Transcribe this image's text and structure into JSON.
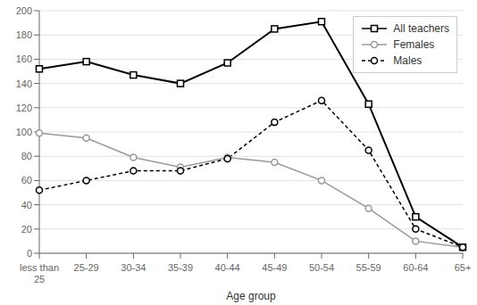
{
  "chart_data": {
    "type": "line",
    "categories": [
      "less than\n25",
      "25-29",
      "30-34",
      "35-39",
      "40-44",
      "45-49",
      "50-54",
      "55-59",
      "60-64",
      "65+"
    ],
    "series": [
      {
        "name": "All teachers",
        "color": "#000000",
        "marker": "square",
        "line_style": "solid",
        "values": [
          152,
          158,
          147,
          140,
          157,
          185,
          191,
          123,
          30,
          5
        ]
      },
      {
        "name": "Females",
        "color": "#999999",
        "marker": "circle",
        "line_style": "solid",
        "values": [
          99,
          95,
          79,
          71,
          79,
          75,
          60,
          37,
          10,
          5
        ]
      },
      {
        "name": "Males",
        "color": "#000000",
        "marker": "circle",
        "line_style": "dashed",
        "values": [
          52,
          60,
          68,
          68,
          78,
          108,
          126,
          85,
          20,
          5
        ]
      }
    ],
    "xlabel": "Age group",
    "ylim": [
      0,
      200
    ],
    "yticks": [
      0,
      20,
      40,
      60,
      80,
      100,
      120,
      140,
      160,
      180,
      200
    ],
    "grid": true,
    "legend": "upper right"
  }
}
